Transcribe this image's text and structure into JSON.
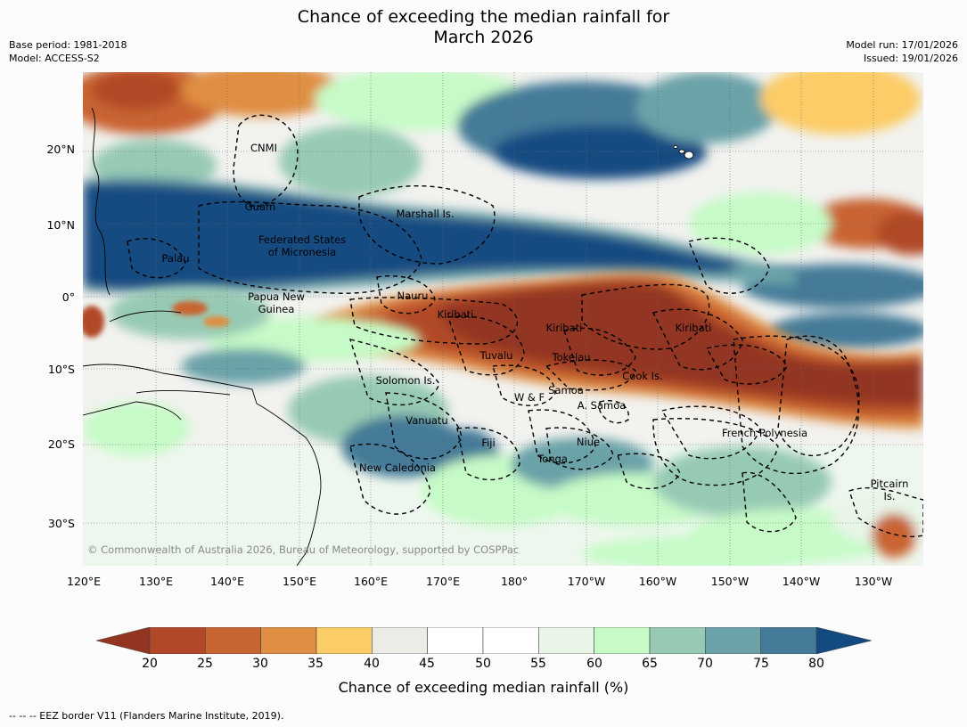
{
  "header": {
    "title_line1": "Chance of exceeding the median rainfall for",
    "title_line2": "March 2026",
    "base_period": "Base period: 1981-2018",
    "model": "Model: ACCESS-S2",
    "model_run": "Model run: 17/01/2026",
    "issued": "Issued: 19/01/2026"
  },
  "map": {
    "lat_ticks": [
      "20°N",
      "10°N",
      "0°",
      "10°S",
      "20°S",
      "30°S"
    ],
    "lon_ticks": [
      "120°E",
      "130°E",
      "140°E",
      "150°E",
      "160°E",
      "170°E",
      "180°",
      "170°W",
      "160°W",
      "150°W",
      "140°W",
      "130°W"
    ],
    "labels": {
      "cnmi": "CNMI",
      "guam": "Guam",
      "marshall": "Marshall Is.",
      "fsm_line1": "Federated States",
      "fsm_line2": "of Micronesia",
      "palau": "Palau",
      "nauru": "Nauru",
      "png_line1": "Papua New",
      "png_line2": "Guinea",
      "kiribati_west": "Kiribati",
      "kiribati_central": "Kiribati",
      "kiribati_east": "Kiribati",
      "tuvalu": "Tuvalu",
      "tokelau": "Tokelau",
      "cook": "Cook Is.",
      "solomon": "Solomon Is.",
      "wf": "W & F",
      "samoa": "Samoa",
      "asamoa": "A. Samoa",
      "vanuatu": "Vanuatu",
      "fiji": "Fiji",
      "niue": "Niue",
      "tonga": "Tonga",
      "new_caledonia": "New Caledonia",
      "french_polynesia": "French Polynesia",
      "pitcairn_line1": "Pitcairn",
      "pitcairn_line2": "Is."
    },
    "copyright": "© Commonwealth of Australia 2026, Bureau of Meteorology, supported by COSPPac"
  },
  "colorbar": {
    "title": "Chance of exceeding median rainfall (%)",
    "ticks": [
      "20",
      "25",
      "30",
      "35",
      "40",
      "45",
      "50",
      "55",
      "60",
      "65",
      "70",
      "75",
      "80"
    ],
    "under_color": "#923420",
    "over_color": "#124b82",
    "colors": [
      "#b14828",
      "#c96433",
      "#df8e42",
      "#fccc66",
      "#edebe6",
      "#ffffff",
      "#ffffff",
      "#e8f5e8",
      "#c6fbc7",
      "#97cab4",
      "#6ba2a8",
      "#457a98"
    ]
  },
  "footer": {
    "eez_note": "--  --  -- EEZ border V11 (Flanders Marine Institute, 2019)."
  }
}
